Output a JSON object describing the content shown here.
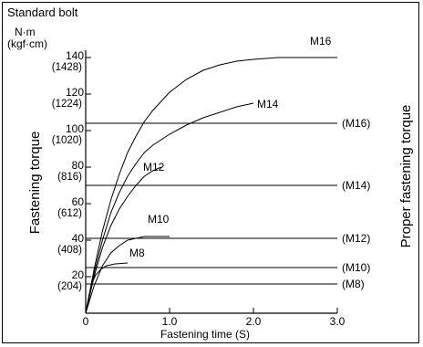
{
  "chart_data": {
    "type": "line",
    "title": "Standard bolt",
    "y_unit": "N·m",
    "y_unit_alt": "(kgf·cm)",
    "ylabel": "Fastening torque",
    "ylabel_right": "Proper fastening torque",
    "xlabel": "Fastening time (S)",
    "xlim": [
      0,
      3.0
    ],
    "ylim": [
      0,
      145
    ],
    "x_ticks": [
      {
        "value": 0,
        "label": "0"
      },
      {
        "value": 1.0,
        "label": "1.0"
      },
      {
        "value": 2.0,
        "label": "2.0"
      },
      {
        "value": 3.0,
        "label": "3.0"
      }
    ],
    "y_ticks": [
      {
        "value": 20,
        "label": "20",
        "alt": "(204)"
      },
      {
        "value": 40,
        "label": "40",
        "alt": "(408)"
      },
      {
        "value": 60,
        "label": "60",
        "alt": "(612)"
      },
      {
        "value": 80,
        "label": "80",
        "alt": "(816)"
      },
      {
        "value": 100,
        "label": "100",
        "alt": "(1020)"
      },
      {
        "value": 120,
        "label": "120",
        "alt": "(1224)"
      },
      {
        "value": 140,
        "label": "140",
        "alt": "(1428)"
      }
    ],
    "series": [
      {
        "name": "M16",
        "points": [
          [
            0,
            0
          ],
          [
            0.05,
            12
          ],
          [
            0.1,
            24
          ],
          [
            0.2,
            45
          ],
          [
            0.3,
            62
          ],
          [
            0.4,
            76
          ],
          [
            0.5,
            88
          ],
          [
            0.6,
            97
          ],
          [
            0.7,
            105
          ],
          [
            0.8,
            111
          ],
          [
            0.9,
            116
          ],
          [
            1.0,
            121
          ],
          [
            1.2,
            128
          ],
          [
            1.4,
            133
          ],
          [
            1.6,
            136
          ],
          [
            1.8,
            138
          ],
          [
            2.0,
            139
          ],
          [
            2.3,
            140
          ],
          [
            2.6,
            140
          ],
          [
            3.0,
            140
          ]
        ]
      },
      {
        "name": "M14",
        "points": [
          [
            0,
            0
          ],
          [
            0.1,
            22
          ],
          [
            0.2,
            40
          ],
          [
            0.3,
            55
          ],
          [
            0.4,
            66
          ],
          [
            0.5,
            75
          ],
          [
            0.6,
            82
          ],
          [
            0.7,
            88
          ],
          [
            0.8,
            92
          ],
          [
            1.0,
            98
          ],
          [
            1.2,
            103
          ],
          [
            1.4,
            107
          ],
          [
            1.6,
            110
          ],
          [
            1.8,
            113
          ],
          [
            2.0,
            115
          ]
        ]
      },
      {
        "name": "M12",
        "points": [
          [
            0,
            0
          ],
          [
            0.1,
            20
          ],
          [
            0.2,
            36
          ],
          [
            0.3,
            48
          ],
          [
            0.4,
            57
          ],
          [
            0.5,
            64
          ],
          [
            0.6,
            70
          ],
          [
            0.7,
            75
          ],
          [
            0.8,
            78
          ],
          [
            0.9,
            80
          ]
        ]
      },
      {
        "name": "M10",
        "points": [
          [
            0,
            0
          ],
          [
            0.1,
            15
          ],
          [
            0.2,
            26
          ],
          [
            0.3,
            33
          ],
          [
            0.4,
            37
          ],
          [
            0.5,
            40
          ],
          [
            0.6,
            41
          ],
          [
            0.7,
            42
          ],
          [
            0.8,
            42
          ],
          [
            1.0,
            42
          ]
        ]
      },
      {
        "name": "M8",
        "points": [
          [
            0,
            0
          ],
          [
            0.04,
            10
          ],
          [
            0.08,
            17
          ],
          [
            0.12,
            21
          ],
          [
            0.18,
            24
          ],
          [
            0.25,
            26
          ],
          [
            0.35,
            27
          ],
          [
            0.5,
            27.5
          ]
        ]
      }
    ],
    "reference_lines": [
      {
        "label": "(M16)",
        "value": 104
      },
      {
        "label": "(M14)",
        "value": 70
      },
      {
        "label": "(M12)",
        "value": 41
      },
      {
        "label": "(M10)",
        "value": 25
      },
      {
        "label": "(M8)",
        "value": 16
      }
    ],
    "grid": false
  }
}
